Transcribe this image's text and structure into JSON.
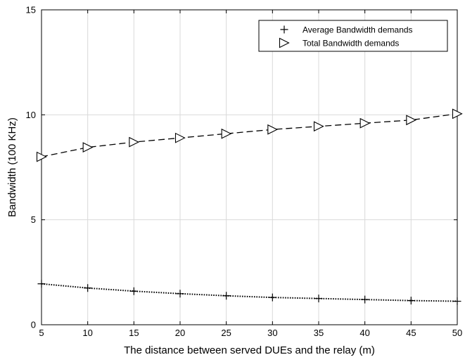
{
  "chart_data": {
    "type": "line",
    "title": "",
    "xlabel": "The distance between served DUEs and the relay (m)",
    "ylabel": "Bandwidth (100 KHz)",
    "xlim": [
      5,
      50
    ],
    "ylim": [
      0,
      15
    ],
    "x_ticks": [
      5,
      10,
      15,
      20,
      25,
      30,
      35,
      40,
      45,
      50
    ],
    "y_ticks": [
      0,
      5,
      10,
      15
    ],
    "grid": true,
    "legend_position": "top-right",
    "x": [
      5,
      10,
      15,
      20,
      25,
      30,
      35,
      40,
      45,
      50
    ],
    "series": [
      {
        "name": "Average Bandwidth demands",
        "marker": "plus",
        "line_style": "dotted",
        "color": "#000000",
        "values": [
          1.95,
          1.75,
          1.6,
          1.48,
          1.38,
          1.3,
          1.25,
          1.2,
          1.15,
          1.12
        ]
      },
      {
        "name": "Total Bandwidth demands",
        "marker": "triangle-right",
        "line_style": "dashed",
        "color": "#000000",
        "values": [
          8.0,
          8.45,
          8.7,
          8.9,
          9.1,
          9.3,
          9.45,
          9.6,
          9.75,
          10.05
        ]
      }
    ]
  }
}
